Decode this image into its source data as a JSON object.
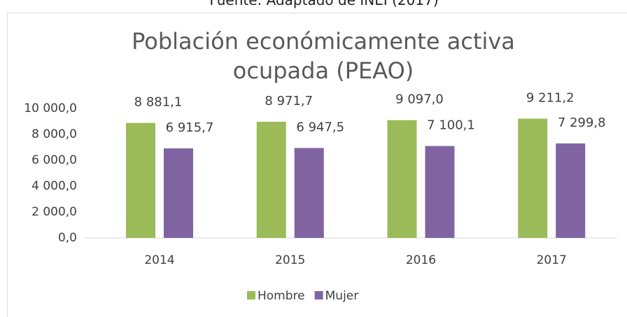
{
  "source": "Fuente: Adaptado de INEI (2017)",
  "chart_data": {
    "type": "bar",
    "title": "Población económicamente activa ocupada (PEAO)",
    "categories": [
      "2014",
      "2015",
      "2016",
      "2017"
    ],
    "series": [
      {
        "name": "Hombre",
        "color": "#9bbb59",
        "values": [
          8881.1,
          8971.7,
          9097.0,
          9211.2
        ],
        "value_labels": [
          "8 881,1",
          "8 971,7",
          "9 097,0",
          "9 211,2"
        ]
      },
      {
        "name": "Mujer",
        "color": "#8064a2",
        "values": [
          6915.7,
          6947.5,
          7100.1,
          7299.8
        ],
        "value_labels": [
          "6 915,7",
          "6 947,5",
          "7 100,1",
          "7 299,8"
        ]
      }
    ],
    "ylim": [
      0,
      10000
    ],
    "yticks": [
      {
        "value": 0,
        "label": "0,0"
      },
      {
        "value": 2000,
        "label": "2 000,0"
      },
      {
        "value": 4000,
        "label": "4 000,0"
      },
      {
        "value": 6000,
        "label": "6 000,0"
      },
      {
        "value": 8000,
        "label": "8 000,0"
      },
      {
        "value": 10000,
        "label": "10 000,0"
      }
    ],
    "grid": false,
    "legend": "bottom"
  }
}
